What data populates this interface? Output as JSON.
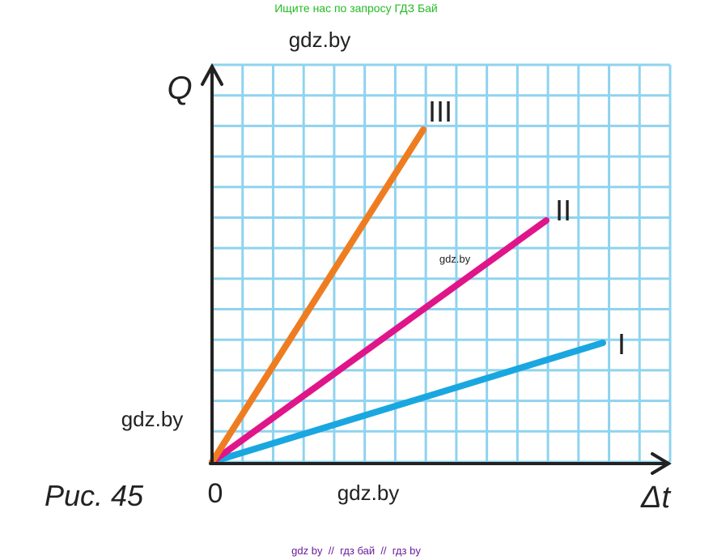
{
  "header": {
    "search_hint": "Ищите нас по запросу ГДЗ Бай"
  },
  "watermarks": [
    "gdz.by",
    "gdz.by",
    "gdz.by",
    "gdz.by"
  ],
  "axes": {
    "y_label": "Q",
    "x_label": "Δt",
    "origin": "0"
  },
  "lines": [
    {
      "label": "I"
    },
    {
      "label": "II"
    },
    {
      "label": "III"
    }
  ],
  "caption": "Рис. 45",
  "footer": "gdz by  //  гдз бай  //  гдз by"
}
